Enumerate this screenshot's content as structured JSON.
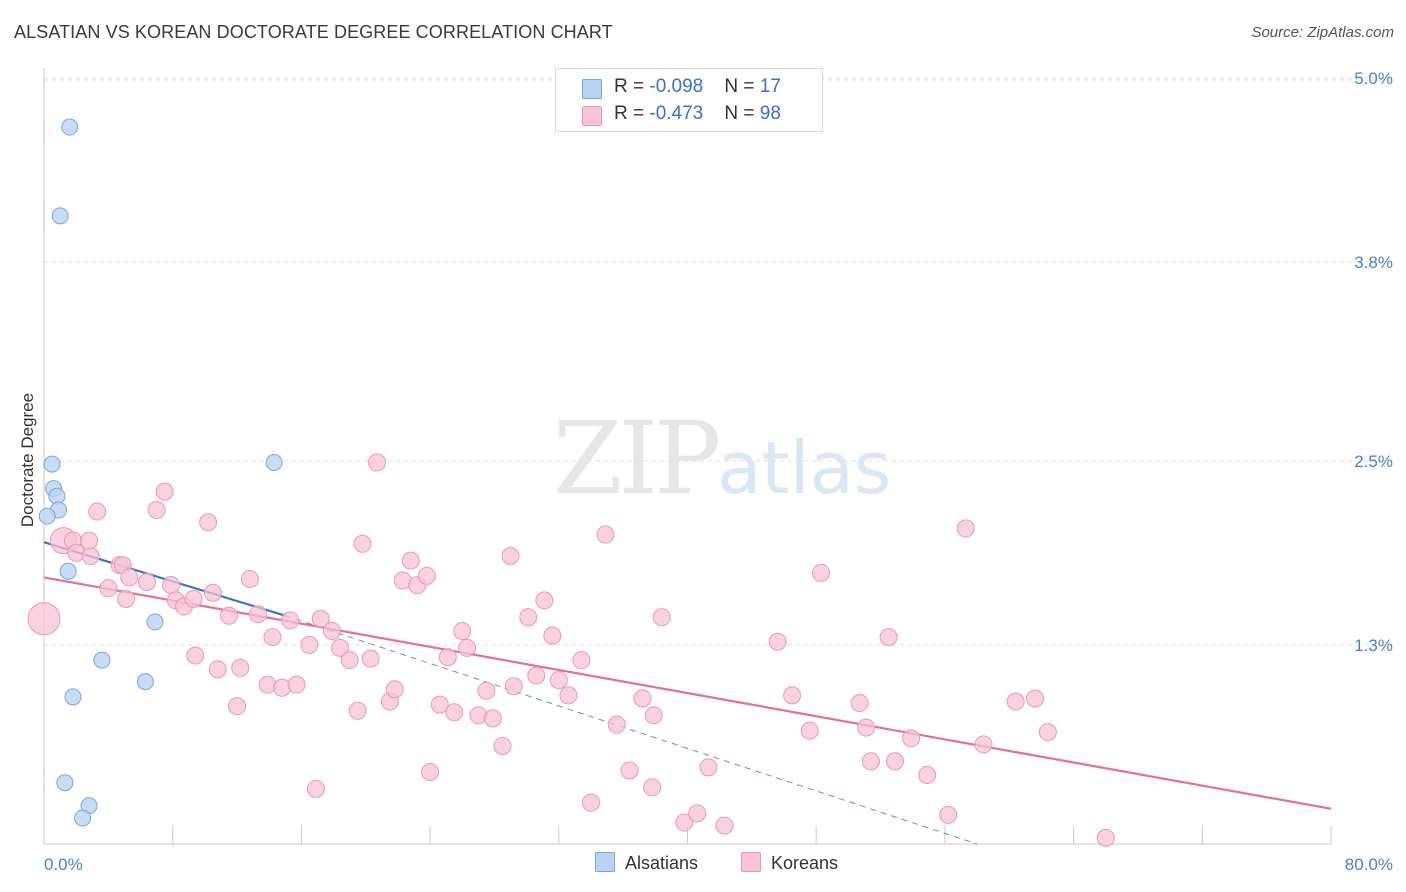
{
  "header": {
    "title": "ALSATIAN VS KOREAN DOCTORATE DEGREE CORRELATION CHART",
    "source": "Source: ZipAtlas.com"
  },
  "watermark": {
    "zip": "ZIP",
    "atlas": "atlas"
  },
  "legend": {
    "rows": [
      {
        "r_label": "R = ",
        "r_value": "-0.098",
        "n_label": "N = ",
        "n_value": "17"
      },
      {
        "r_label": "R = ",
        "r_value": "-0.473",
        "n_label": "N = ",
        "n_value": "98"
      }
    ]
  },
  "bottom_legend": {
    "alsatians": "Alsatians",
    "koreans": "Koreans"
  },
  "colors": {
    "alsatian_fill": "#b9d3f3",
    "alsatian_stroke": "#7ba5df",
    "alsatian_line": "#3a73cc",
    "korean_fill": "#f8c3d4",
    "korean_stroke": "#ea98b4",
    "korean_line": "#e4709a",
    "grid": "#dddddd",
    "axis_text": "#4a7fd4"
  },
  "chart_data": {
    "type": "scatter",
    "title": "ALSATIAN VS KOREAN DOCTORATE DEGREE CORRELATION CHART",
    "xlabel": "",
    "ylabel": "Doctorate Degree",
    "xlim": [
      0,
      80
    ],
    "ylim": [
      0,
      5.0
    ],
    "x_tick_labels": [
      "0.0%",
      "80.0%"
    ],
    "y_ticks": [
      1.3,
      2.5,
      3.8,
      5.0
    ],
    "y_tick_labels": [
      "1.3%",
      "2.5%",
      "3.8%",
      "5.0%"
    ],
    "series": [
      {
        "name": "Alsatians",
        "r": -0.098,
        "n": 17,
        "points": [
          [
            1.6,
            4.68
          ],
          [
            1.0,
            4.1
          ],
          [
            0.5,
            2.48
          ],
          [
            0.6,
            2.32
          ],
          [
            0.8,
            2.27
          ],
          [
            0.9,
            2.18
          ],
          [
            0.2,
            2.14
          ],
          [
            1.5,
            1.78
          ],
          [
            14.3,
            2.49
          ],
          [
            6.9,
            1.45
          ],
          [
            3.6,
            1.2
          ],
          [
            6.3,
            1.06
          ],
          [
            1.8,
            0.96
          ],
          [
            1.3,
            0.4
          ],
          [
            2.8,
            0.25
          ],
          [
            2.4,
            0.17
          ],
          [
            0.0,
            1.47
          ]
        ],
        "trend_solid": [
          [
            0.0,
            1.97
          ],
          [
            15.0,
            1.49
          ]
        ],
        "trend_dashed": [
          [
            15.0,
            1.49
          ],
          [
            58.0,
            0.0
          ]
        ]
      },
      {
        "name": "Koreans",
        "r": -0.473,
        "n": 98,
        "points": [
          [
            0.0,
            1.47
          ],
          [
            1.2,
            1.98
          ],
          [
            1.8,
            1.98
          ],
          [
            2.0,
            1.9
          ],
          [
            2.9,
            1.88
          ],
          [
            2.8,
            1.98
          ],
          [
            3.3,
            2.17
          ],
          [
            4.7,
            1.82
          ],
          [
            4.9,
            1.82
          ],
          [
            5.3,
            1.74
          ],
          [
            4.0,
            1.67
          ],
          [
            5.1,
            1.6
          ],
          [
            6.4,
            1.71
          ],
          [
            7.0,
            2.18
          ],
          [
            7.5,
            2.3
          ],
          [
            7.9,
            1.69
          ],
          [
            8.2,
            1.59
          ],
          [
            8.7,
            1.55
          ],
          [
            9.3,
            1.6
          ],
          [
            10.2,
            2.1
          ],
          [
            10.5,
            1.64
          ],
          [
            9.4,
            1.23
          ],
          [
            10.8,
            1.14
          ],
          [
            11.5,
            1.49
          ],
          [
            12.2,
            1.15
          ],
          [
            12.0,
            0.9
          ],
          [
            12.8,
            1.73
          ],
          [
            13.3,
            1.5
          ],
          [
            13.9,
            1.04
          ],
          [
            14.2,
            1.35
          ],
          [
            14.8,
            1.02
          ],
          [
            15.3,
            1.46
          ],
          [
            15.7,
            1.04
          ],
          [
            16.5,
            1.3
          ],
          [
            16.9,
            0.36
          ],
          [
            17.2,
            1.47
          ],
          [
            17.9,
            1.39
          ],
          [
            18.4,
            1.28
          ],
          [
            19.0,
            1.2
          ],
          [
            19.5,
            0.87
          ],
          [
            19.8,
            1.96
          ],
          [
            20.3,
            1.21
          ],
          [
            20.7,
            2.49
          ],
          [
            21.5,
            0.93
          ],
          [
            21.8,
            1.01
          ],
          [
            22.3,
            1.72
          ],
          [
            22.8,
            1.85
          ],
          [
            23.2,
            1.69
          ],
          [
            23.8,
            1.75
          ],
          [
            24.0,
            0.47
          ],
          [
            24.6,
            0.91
          ],
          [
            25.1,
            1.22
          ],
          [
            25.5,
            0.86
          ],
          [
            26.0,
            1.39
          ],
          [
            26.3,
            1.28
          ],
          [
            27.0,
            0.84
          ],
          [
            27.5,
            1.0
          ],
          [
            27.9,
            0.82
          ],
          [
            28.5,
            0.64
          ],
          [
            29.0,
            1.88
          ],
          [
            29.2,
            1.03
          ],
          [
            30.1,
            1.48
          ],
          [
            30.6,
            1.1
          ],
          [
            31.1,
            1.59
          ],
          [
            31.6,
            1.36
          ],
          [
            32.0,
            1.07
          ],
          [
            32.6,
            0.97
          ],
          [
            33.4,
            1.2
          ],
          [
            34.0,
            0.27
          ],
          [
            34.9,
            2.02
          ],
          [
            35.6,
            0.78
          ],
          [
            36.4,
            0.48
          ],
          [
            37.2,
            0.95
          ],
          [
            37.8,
            0.37
          ],
          [
            37.9,
            0.84
          ],
          [
            38.4,
            1.48
          ],
          [
            39.8,
            0.14
          ],
          [
            40.6,
            0.2
          ],
          [
            41.3,
            0.5
          ],
          [
            42.3,
            0.12
          ],
          [
            45.6,
            1.32
          ],
          [
            46.5,
            0.97
          ],
          [
            47.6,
            0.74
          ],
          [
            48.3,
            1.77
          ],
          [
            50.7,
            0.92
          ],
          [
            51.1,
            0.76
          ],
          [
            51.4,
            0.54
          ],
          [
            52.5,
            1.35
          ],
          [
            52.9,
            0.54
          ],
          [
            53.9,
            0.69
          ],
          [
            54.9,
            0.45
          ],
          [
            56.2,
            0.19
          ],
          [
            57.3,
            2.06
          ],
          [
            58.4,
            0.65
          ],
          [
            60.4,
            0.93
          ],
          [
            61.6,
            0.95
          ],
          [
            62.4,
            0.73
          ],
          [
            66.0,
            0.04
          ]
        ],
        "trend_solid": [
          [
            0.0,
            1.74
          ],
          [
            80.0,
            0.23
          ]
        ]
      }
    ]
  }
}
